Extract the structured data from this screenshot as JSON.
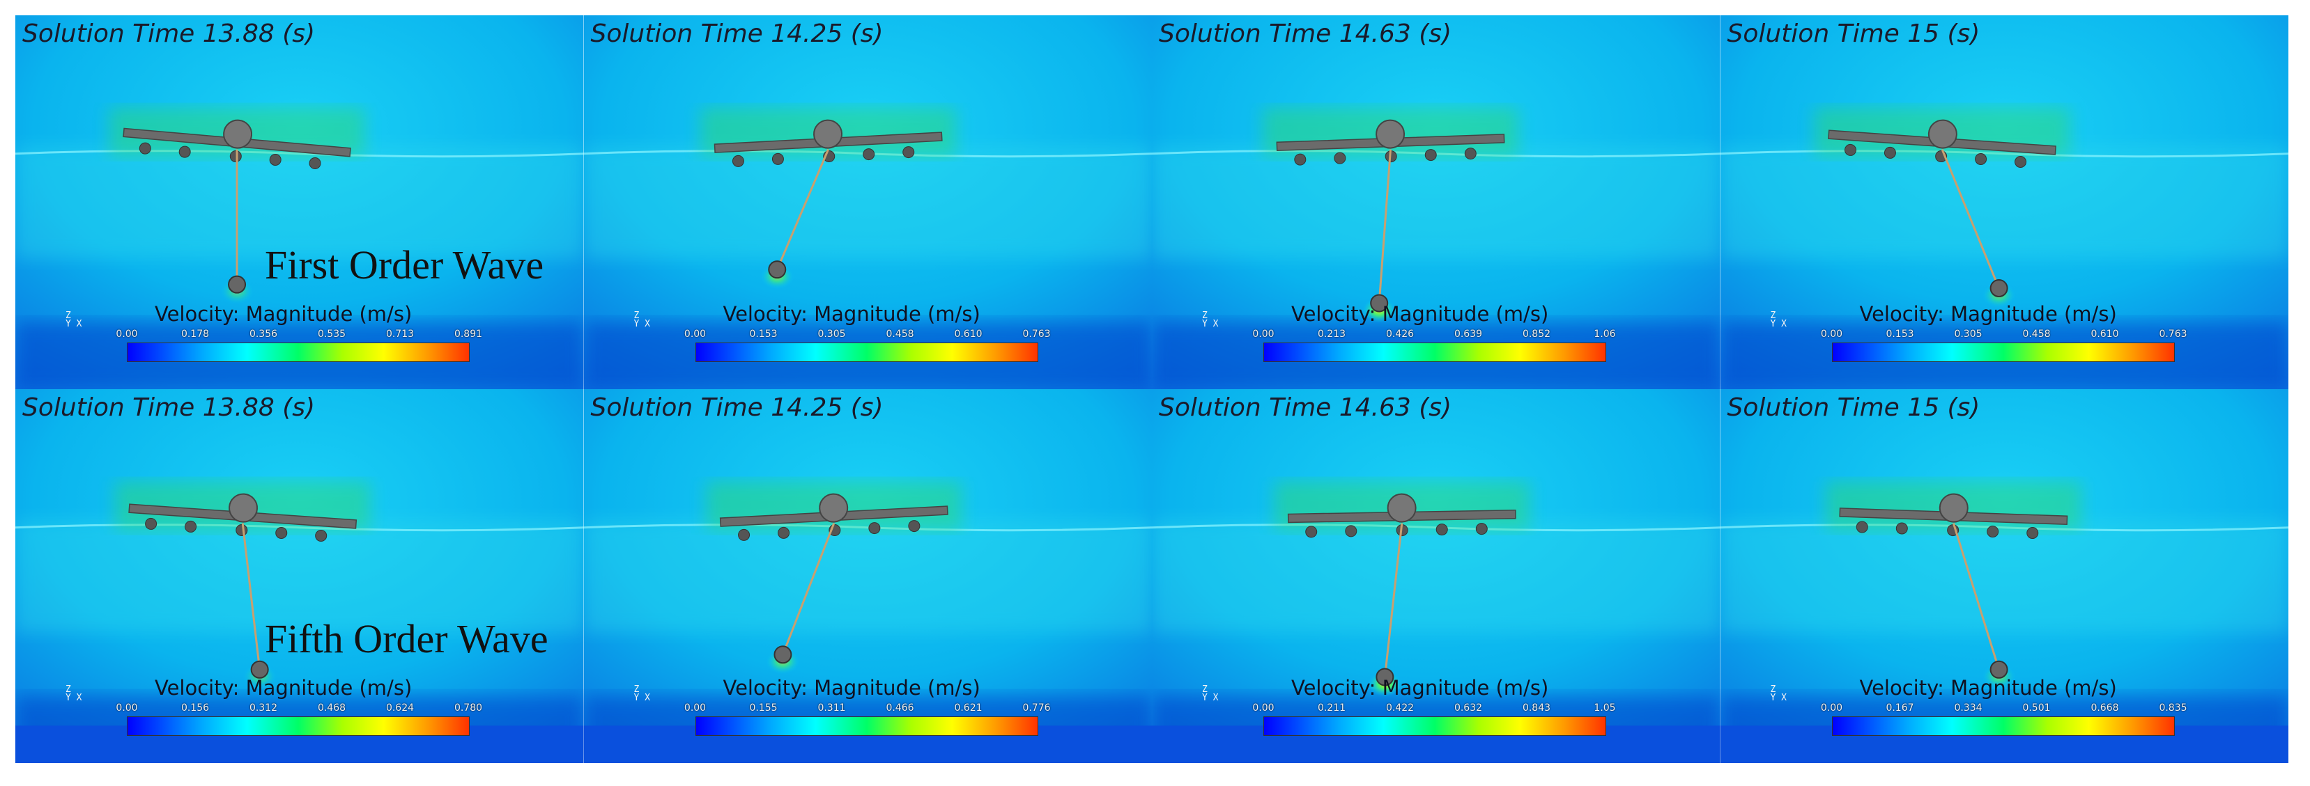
{
  "rows": [
    {
      "wave_label": "First Order Wave",
      "panels": [
        {
          "title": "Solution Time 13.88 (s)",
          "colorbar_title": "Velocity: Magnitude (m/s)",
          "ticks": [
            "0.00",
            "0.178",
            "0.356",
            "0.535",
            "0.713",
            "0.891"
          ],
          "tilt": 5,
          "anchor_x": 0.31,
          "ball_dx": 0.0,
          "ball_depth": 0.72,
          "ball_glow": 0.4
        },
        {
          "title": "Solution Time 14.25 (s)",
          "colorbar_title": "Velocity: Magnitude (m/s)",
          "ticks": [
            "0.00",
            "0.153",
            "0.305",
            "0.458",
            "0.610",
            "0.763"
          ],
          "tilt": -3,
          "anchor_x": 0.35,
          "ball_dx": -0.09,
          "ball_depth": 0.68,
          "ball_glow": 0.6
        },
        {
          "title": "Solution Time 14.63 (s)",
          "colorbar_title": "Velocity: Magnitude (m/s)",
          "ticks": [
            "0.00",
            "0.213",
            "0.426",
            "0.639",
            "0.852",
            "1.06"
          ],
          "tilt": -2,
          "anchor_x": 0.34,
          "ball_dx": -0.02,
          "ball_depth": 0.77,
          "ball_glow": 0.9
        },
        {
          "title": "Solution Time 15 (s)",
          "colorbar_title": "Velocity: Magnitude (m/s)",
          "ticks": [
            "0.00",
            "0.153",
            "0.305",
            "0.458",
            "0.610",
            "0.763"
          ],
          "tilt": 4,
          "anchor_x": 0.31,
          "ball_dx": 0.1,
          "ball_depth": 0.73,
          "ball_glow": 0.5
        }
      ]
    },
    {
      "wave_label": "Fifth Order Wave",
      "panels": [
        {
          "title": "Solution Time 13.88 (s)",
          "colorbar_title": "Velocity: Magnitude (m/s)",
          "ticks": [
            "0.00",
            "0.156",
            "0.312",
            "0.468",
            "0.624",
            "0.780"
          ],
          "tilt": 4,
          "anchor_x": 0.32,
          "ball_dx": 0.03,
          "ball_depth": 0.75,
          "ball_glow": 0.4
        },
        {
          "title": "Solution Time 14.25 (s)",
          "colorbar_title": "Velocity: Magnitude (m/s)",
          "ticks": [
            "0.00",
            "0.155",
            "0.311",
            "0.466",
            "0.621",
            "0.776"
          ],
          "tilt": -3,
          "anchor_x": 0.36,
          "ball_dx": -0.09,
          "ball_depth": 0.71,
          "ball_glow": 0.6
        },
        {
          "title": "Solution Time 14.63 (s)",
          "colorbar_title": "Velocity: Magnitude (m/s)",
          "ticks": [
            "0.00",
            "0.211",
            "0.422",
            "0.632",
            "0.843",
            "1.05"
          ],
          "tilt": -1,
          "anchor_x": 0.36,
          "ball_dx": -0.03,
          "ball_depth": 0.77,
          "ball_glow": 0.9
        },
        {
          "title": "Solution Time 15 (s)",
          "colorbar_title": "Velocity: Magnitude (m/s)",
          "ticks": [
            "0.00",
            "0.167",
            "0.334",
            "0.501",
            "0.668",
            "0.835"
          ],
          "tilt": 2,
          "anchor_x": 0.33,
          "ball_dx": 0.08,
          "ball_depth": 0.75,
          "ball_glow": 0.5
        }
      ]
    }
  ],
  "triad_label": "Z\nY X",
  "colors": {
    "field": "#00aaee",
    "deep": "#0044cc",
    "surface": "#33ddee",
    "wake": "#33dd66",
    "structure": "#6b6b6b",
    "mooring": "#c8a070"
  }
}
